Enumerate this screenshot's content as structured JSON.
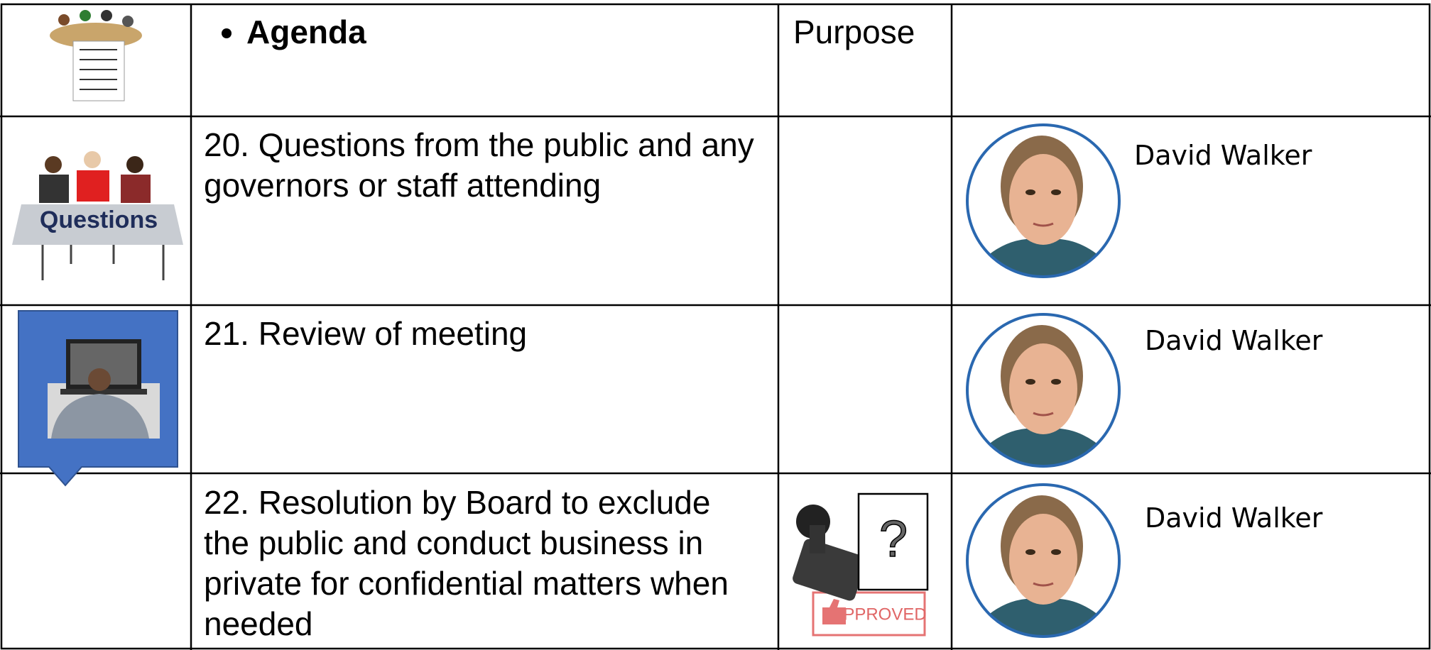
{
  "header": {
    "title": "Agenda",
    "purpose": "Purpose"
  },
  "icons": {
    "questions": "Questions",
    "unknown": "?",
    "approved": "APPROVED"
  },
  "rows": [
    {
      "item": "20. Questions from the public and any governors or staff attending",
      "presenter": "David Walker"
    },
    {
      "item": "21. Review of meeting",
      "presenter": "David Walker"
    },
    {
      "item": "22. Resolution by Board to exclude the public and conduct business in private for confidential matters when needed",
      "presenter": "David Walker"
    }
  ]
}
